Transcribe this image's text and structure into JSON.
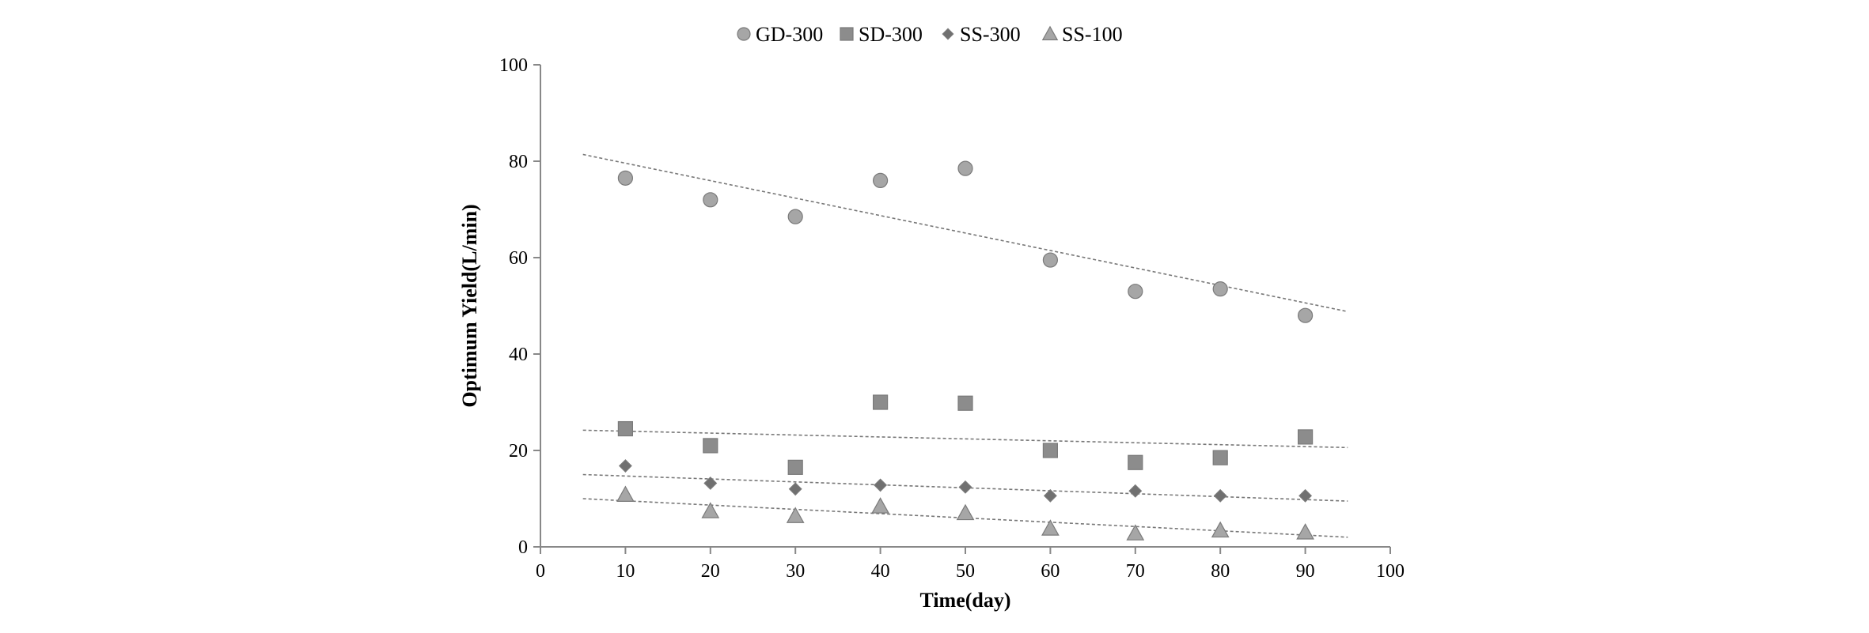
{
  "chart_data": {
    "type": "scatter",
    "title": "",
    "xlabel": "Time(day)",
    "ylabel": "Optimum Yield(L/min)",
    "xlim": [
      0,
      100
    ],
    "ylim": [
      0,
      100
    ],
    "xticks": [
      "0",
      "10",
      "20",
      "30",
      "40",
      "50",
      "60",
      "70",
      "80",
      "90",
      "100"
    ],
    "yticks": [
      "0",
      "20",
      "40",
      "60",
      "80",
      "100"
    ],
    "grid": false,
    "legend_position": "top-center",
    "x": [
      10,
      20,
      30,
      40,
      50,
      60,
      70,
      80,
      90
    ],
    "series": [
      {
        "name": "GD-300",
        "marker": "circle",
        "color": "#a6a6a6",
        "values": [
          76.5,
          72.0,
          68.5,
          76.0,
          78.5,
          59.5,
          53.0,
          53.5,
          48.0
        ],
        "trendline": {
          "x": [
            5,
            95
          ],
          "y": [
            81.4,
            48.8
          ]
        }
      },
      {
        "name": "SD-300",
        "marker": "square",
        "color": "#8c8c8c",
        "values": [
          24.5,
          21.0,
          16.5,
          30.0,
          29.8,
          20.0,
          17.5,
          18.5,
          22.8
        ],
        "trendline": {
          "x": [
            5,
            95
          ],
          "y": [
            24.2,
            20.6
          ]
        }
      },
      {
        "name": "SS-300",
        "marker": "diamond",
        "color": "#707070",
        "values": [
          16.8,
          13.2,
          12.0,
          12.8,
          12.4,
          10.6,
          11.6,
          10.6,
          10.6
        ],
        "trendline": {
          "x": [
            5,
            95
          ],
          "y": [
            15.0,
            9.5
          ]
        }
      },
      {
        "name": "SS-100",
        "marker": "triangle",
        "color": "#a6a6a6",
        "values": [
          10.8,
          7.4,
          6.4,
          8.4,
          7.0,
          3.8,
          2.8,
          3.4,
          3.0
        ],
        "trendline": {
          "x": [
            5,
            95
          ],
          "y": [
            10.0,
            2.0
          ]
        }
      }
    ]
  }
}
